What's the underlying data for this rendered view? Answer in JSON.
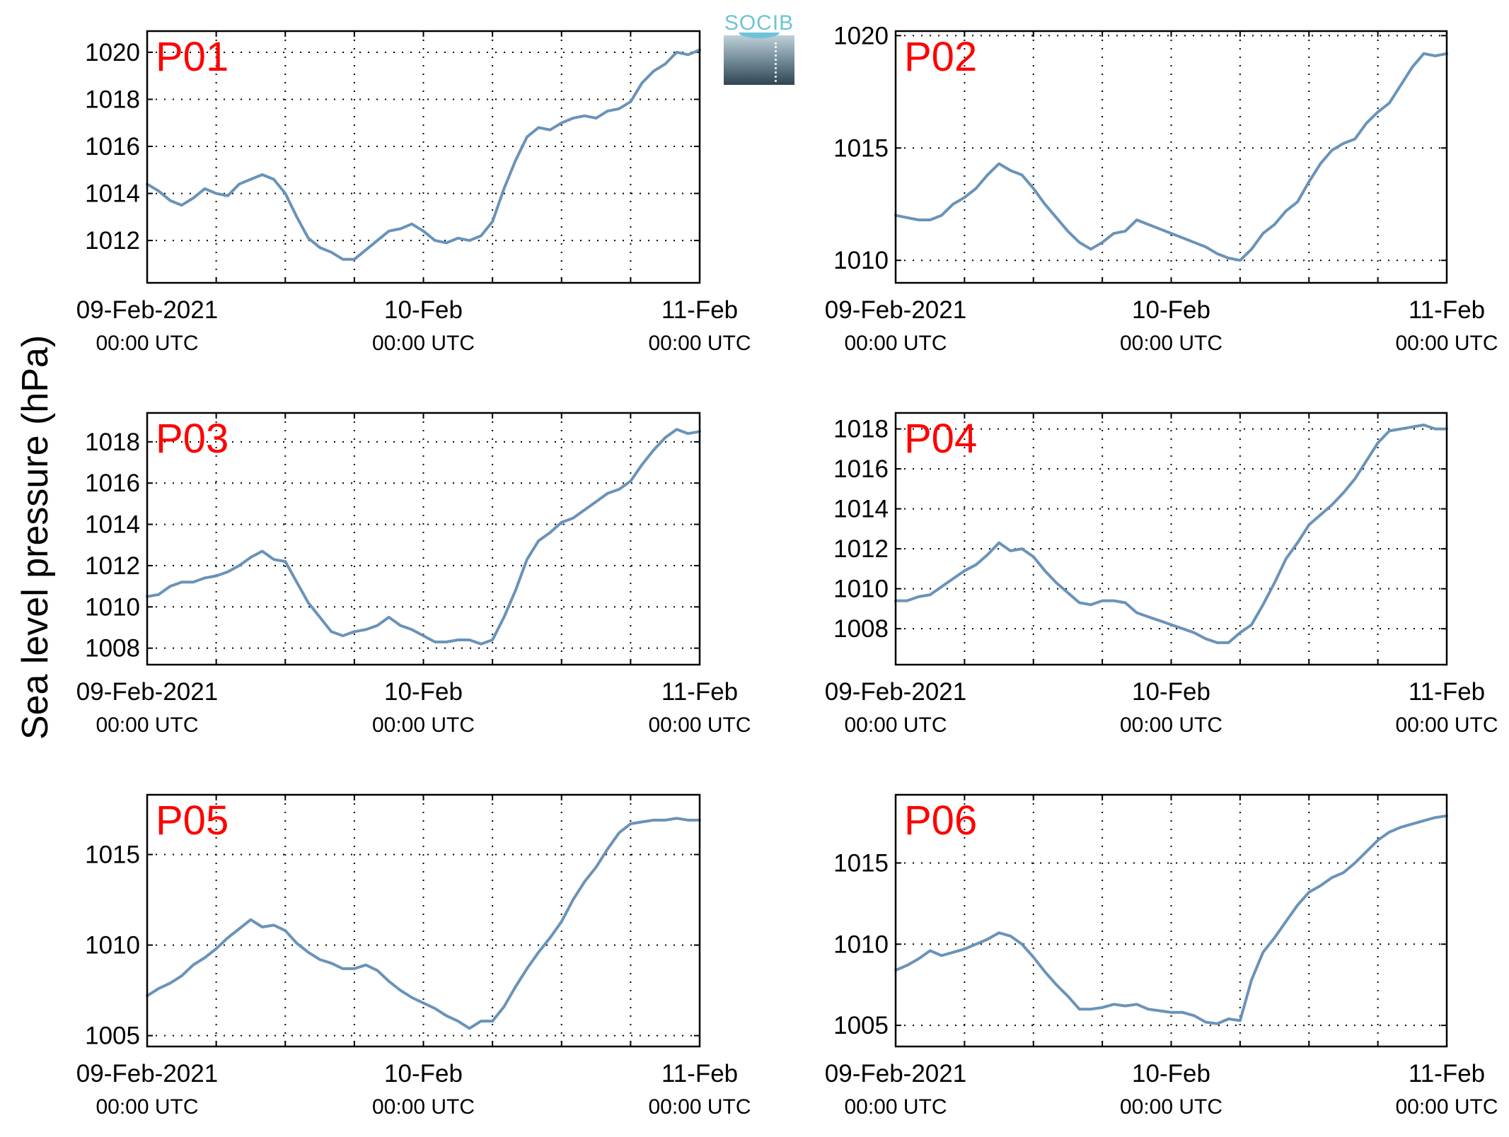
{
  "figure": {
    "ylabel": "Sea level pressure (hPa)",
    "logo_text": "SOCIB"
  },
  "colors": {
    "line": "#6a93b8",
    "panel_label": "#ff0000",
    "grid": "#000000"
  },
  "chart_data": [
    {
      "type": "line",
      "title": "P01",
      "xlabel_ticks": [
        {
          "main": "09-Feb-2021",
          "sub": "00:00 UTC"
        },
        {
          "main": "10-Feb",
          "sub": "00:00 UTC"
        },
        {
          "main": "11-Feb",
          "sub": "00:00 UTC"
        }
      ],
      "xlim_hours": [
        0,
        48
      ],
      "ylim": [
        1010.2,
        1020.9
      ],
      "yticks": [
        1012,
        1014,
        1016,
        1018,
        1020
      ],
      "grid": true,
      "series": [
        {
          "x": [
            0,
            1,
            2,
            3,
            4,
            5,
            6,
            7,
            8,
            9,
            10,
            11,
            12,
            13,
            14,
            15,
            16,
            17,
            18,
            19,
            20,
            21,
            22,
            23,
            24,
            25,
            26,
            27,
            28,
            29,
            30,
            31,
            32,
            33,
            34,
            35,
            36,
            37,
            38,
            39,
            40,
            41,
            42,
            43,
            44,
            45,
            46,
            47,
            48
          ],
          "y": [
            1014.4,
            1014.1,
            1013.7,
            1013.5,
            1013.8,
            1014.2,
            1014.0,
            1013.9,
            1014.4,
            1014.6,
            1014.8,
            1014.6,
            1014.0,
            1013.0,
            1012.1,
            1011.7,
            1011.5,
            1011.2,
            1011.2,
            1011.6,
            1012.0,
            1012.4,
            1012.5,
            1012.7,
            1012.4,
            1012.0,
            1011.9,
            1012.1,
            1012.0,
            1012.2,
            1012.8,
            1014.2,
            1015.4,
            1016.4,
            1016.8,
            1016.7,
            1017.0,
            1017.2,
            1017.3,
            1017.2,
            1017.5,
            1017.6,
            1017.9,
            1018.7,
            1019.2,
            1019.5,
            1020.0,
            1019.9,
            1020.1
          ]
        }
      ]
    },
    {
      "type": "line",
      "title": "P02",
      "xlabel_ticks": [
        {
          "main": "09-Feb-2021",
          "sub": "00:00 UTC"
        },
        {
          "main": "10-Feb",
          "sub": "00:00 UTC"
        },
        {
          "main": "11-Feb",
          "sub": "00:00 UTC"
        }
      ],
      "xlim_hours": [
        0,
        48
      ],
      "ylim": [
        1009.0,
        1020.2
      ],
      "yticks": [
        1010,
        1015,
        1020
      ],
      "grid": true,
      "series": [
        {
          "x": [
            0,
            1,
            2,
            3,
            4,
            5,
            6,
            7,
            8,
            9,
            10,
            11,
            12,
            13,
            14,
            15,
            16,
            17,
            18,
            19,
            20,
            21,
            22,
            23,
            24,
            25,
            26,
            27,
            28,
            29,
            30,
            31,
            32,
            33,
            34,
            35,
            36,
            37,
            38,
            39,
            40,
            41,
            42,
            43,
            44,
            45,
            46,
            47,
            48
          ],
          "y": [
            1012.0,
            1011.9,
            1011.8,
            1011.8,
            1012.0,
            1012.5,
            1012.8,
            1013.2,
            1013.8,
            1014.3,
            1014.0,
            1013.8,
            1013.2,
            1012.5,
            1011.9,
            1011.3,
            1010.8,
            1010.5,
            1010.8,
            1011.2,
            1011.3,
            1011.8,
            1011.6,
            1011.4,
            1011.2,
            1011.0,
            1010.8,
            1010.6,
            1010.3,
            1010.1,
            1010.0,
            1010.5,
            1011.2,
            1011.6,
            1012.2,
            1012.6,
            1013.5,
            1014.3,
            1014.9,
            1015.2,
            1015.4,
            1016.1,
            1016.6,
            1017.0,
            1017.8,
            1018.6,
            1019.2,
            1019.1,
            1019.2
          ]
        }
      ]
    },
    {
      "type": "line",
      "title": "P03",
      "xlabel_ticks": [
        {
          "main": "09-Feb-2021",
          "sub": "00:00 UTC"
        },
        {
          "main": "10-Feb",
          "sub": "00:00 UTC"
        },
        {
          "main": "11-Feb",
          "sub": "00:00 UTC"
        }
      ],
      "xlim_hours": [
        0,
        48
      ],
      "ylim": [
        1007.2,
        1019.4
      ],
      "yticks": [
        1008,
        1010,
        1012,
        1014,
        1016,
        1018
      ],
      "grid": true,
      "series": [
        {
          "x": [
            0,
            1,
            2,
            3,
            4,
            5,
            6,
            7,
            8,
            9,
            10,
            11,
            12,
            13,
            14,
            15,
            16,
            17,
            18,
            19,
            20,
            21,
            22,
            23,
            24,
            25,
            26,
            27,
            28,
            29,
            30,
            31,
            32,
            33,
            34,
            35,
            36,
            37,
            38,
            39,
            40,
            41,
            42,
            43,
            44,
            45,
            46,
            47,
            48
          ],
          "y": [
            1010.5,
            1010.6,
            1011.0,
            1011.2,
            1011.2,
            1011.4,
            1011.5,
            1011.7,
            1012.0,
            1012.4,
            1012.7,
            1012.3,
            1012.2,
            1011.2,
            1010.2,
            1009.5,
            1008.8,
            1008.6,
            1008.8,
            1008.9,
            1009.1,
            1009.5,
            1009.1,
            1008.9,
            1008.6,
            1008.3,
            1008.3,
            1008.4,
            1008.4,
            1008.2,
            1008.4,
            1009.5,
            1010.8,
            1012.3,
            1013.2,
            1013.6,
            1014.1,
            1014.3,
            1014.7,
            1015.1,
            1015.5,
            1015.7,
            1016.1,
            1016.9,
            1017.6,
            1018.2,
            1018.6,
            1018.4,
            1018.5
          ]
        }
      ]
    },
    {
      "type": "line",
      "title": "P04",
      "xlabel_ticks": [
        {
          "main": "09-Feb-2021",
          "sub": "00:00 UTC"
        },
        {
          "main": "10-Feb",
          "sub": "00:00 UTC"
        },
        {
          "main": "11-Feb",
          "sub": "00:00 UTC"
        }
      ],
      "xlim_hours": [
        0,
        48
      ],
      "ylim": [
        1006.2,
        1018.8
      ],
      "yticks": [
        1008,
        1010,
        1012,
        1014,
        1016,
        1018
      ],
      "grid": true,
      "series": [
        {
          "x": [
            0,
            1,
            2,
            3,
            4,
            5,
            6,
            7,
            8,
            9,
            10,
            11,
            12,
            13,
            14,
            15,
            16,
            17,
            18,
            19,
            20,
            21,
            22,
            23,
            24,
            25,
            26,
            27,
            28,
            29,
            30,
            31,
            32,
            33,
            34,
            35,
            36,
            37,
            38,
            39,
            40,
            41,
            42,
            43,
            44,
            45,
            46,
            47,
            48
          ],
          "y": [
            1009.4,
            1009.4,
            1009.6,
            1009.7,
            1010.1,
            1010.5,
            1010.9,
            1011.2,
            1011.7,
            1012.3,
            1011.9,
            1012.0,
            1011.6,
            1010.9,
            1010.3,
            1009.8,
            1009.3,
            1009.2,
            1009.4,
            1009.4,
            1009.3,
            1008.8,
            1008.6,
            1008.4,
            1008.2,
            1008.0,
            1007.8,
            1007.5,
            1007.3,
            1007.3,
            1007.8,
            1008.2,
            1009.2,
            1010.3,
            1011.5,
            1012.3,
            1013.2,
            1013.7,
            1014.2,
            1014.8,
            1015.5,
            1016.4,
            1017.3,
            1017.9,
            1018.0,
            1018.1,
            1018.2,
            1018.0,
            1018.0
          ]
        }
      ]
    },
    {
      "type": "line",
      "title": "P05",
      "xlabel_ticks": [
        {
          "main": "09-Feb-2021",
          "sub": "00:00 UTC"
        },
        {
          "main": "10-Feb",
          "sub": "00:00 UTC"
        },
        {
          "main": "11-Feb",
          "sub": "00:00 UTC"
        }
      ],
      "xlim_hours": [
        0,
        48
      ],
      "ylim": [
        1004.4,
        1018.3
      ],
      "yticks": [
        1005,
        1010,
        1015
      ],
      "grid": true,
      "series": [
        {
          "x": [
            0,
            1,
            2,
            3,
            4,
            5,
            6,
            7,
            8,
            9,
            10,
            11,
            12,
            13,
            14,
            15,
            16,
            17,
            18,
            19,
            20,
            21,
            22,
            23,
            24,
            25,
            26,
            27,
            28,
            29,
            30,
            31,
            32,
            33,
            34,
            35,
            36,
            37,
            38,
            39,
            40,
            41,
            42,
            43,
            44,
            45,
            46,
            47,
            48
          ],
          "y": [
            1007.2,
            1007.6,
            1007.9,
            1008.3,
            1008.9,
            1009.3,
            1009.8,
            1010.4,
            1010.9,
            1011.4,
            1011.0,
            1011.1,
            1010.8,
            1010.1,
            1009.6,
            1009.2,
            1009.0,
            1008.7,
            1008.7,
            1008.9,
            1008.6,
            1008.0,
            1007.5,
            1007.1,
            1006.8,
            1006.5,
            1006.1,
            1005.8,
            1005.4,
            1005.8,
            1005.8,
            1006.6,
            1007.7,
            1008.7,
            1009.6,
            1010.4,
            1011.3,
            1012.5,
            1013.5,
            1014.3,
            1015.3,
            1016.2,
            1016.7,
            1016.8,
            1016.9,
            1016.9,
            1017.0,
            1016.9,
            1016.9
          ]
        }
      ]
    },
    {
      "type": "line",
      "title": "P06",
      "xlabel_ticks": [
        {
          "main": "09-Feb-2021",
          "sub": "00:00 UTC"
        },
        {
          "main": "10-Feb",
          "sub": "00:00 UTC"
        },
        {
          "main": "11-Feb",
          "sub": "00:00 UTC"
        }
      ],
      "xlim_hours": [
        0,
        48
      ],
      "ylim": [
        1003.7,
        1019.2
      ],
      "yticks": [
        1005,
        1010,
        1015
      ],
      "grid": true,
      "series": [
        {
          "x": [
            0,
            1,
            2,
            3,
            4,
            5,
            6,
            7,
            8,
            9,
            10,
            11,
            12,
            13,
            14,
            15,
            16,
            17,
            18,
            19,
            20,
            21,
            22,
            23,
            24,
            25,
            26,
            27,
            28,
            29,
            30,
            31,
            32,
            33,
            34,
            35,
            36,
            37,
            38,
            39,
            40,
            41,
            42,
            43,
            44,
            45,
            46,
            47,
            48
          ],
          "y": [
            1008.4,
            1008.7,
            1009.1,
            1009.6,
            1009.3,
            1009.5,
            1009.7,
            1010.0,
            1010.3,
            1010.7,
            1010.5,
            1010.0,
            1009.2,
            1008.3,
            1007.5,
            1006.8,
            1006.0,
            1006.0,
            1006.1,
            1006.3,
            1006.2,
            1006.3,
            1006.0,
            1005.9,
            1005.8,
            1005.8,
            1005.6,
            1005.2,
            1005.1,
            1005.4,
            1005.3,
            1007.8,
            1009.5,
            1010.4,
            1011.4,
            1012.4,
            1013.2,
            1013.6,
            1014.1,
            1014.4,
            1015.0,
            1015.7,
            1016.4,
            1016.9,
            1017.2,
            1017.4,
            1017.6,
            1017.8,
            1017.9
          ]
        }
      ]
    }
  ]
}
